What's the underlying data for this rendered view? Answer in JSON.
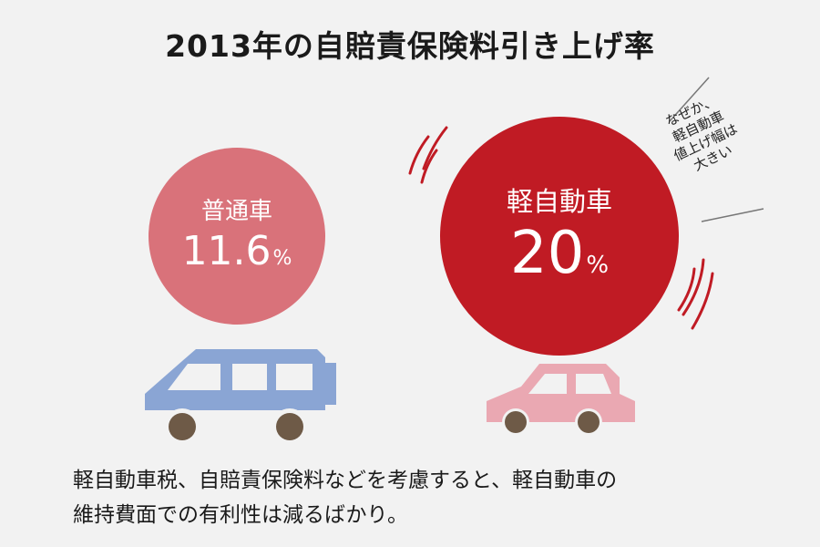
{
  "title": "2013年の自賠責保険料引き上げ率",
  "normal_car": {
    "label": "普通車",
    "value": "11.6",
    "unit": "%",
    "color": "#d9727a",
    "car_color": "#8aa5d4"
  },
  "kei_car": {
    "label": "軽自動車",
    "value": "20",
    "unit": "%",
    "color": "#c01b24",
    "car_color": "#eaa8b2"
  },
  "note_lines": [
    "なぜか、",
    "軽自動車",
    "値上げ幅は",
    "大きい"
  ],
  "description_lines": [
    "軽自動車税、自賠責保険料などを考慮すると、軽自動車の",
    "維持費面での有利性は減るばかり。"
  ]
}
